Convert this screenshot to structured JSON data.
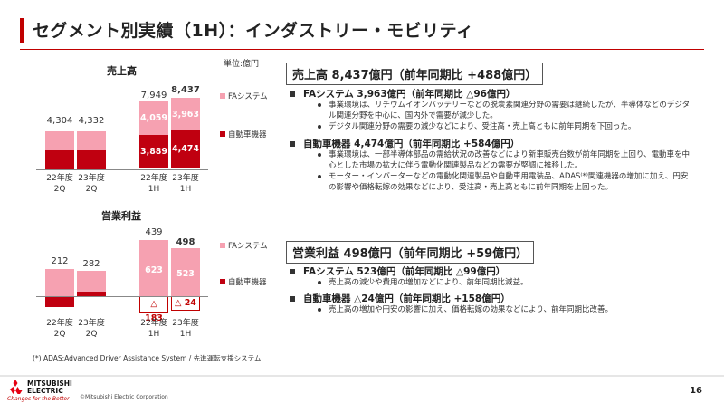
{
  "title": "セグメント別実績（1H）：インダストリー・モビリティ",
  "unit": "単位:億円",
  "colors": {
    "fa": "#f6a1b1",
    "auto": "#c00010",
    "accent": "#c00000"
  },
  "legend": {
    "fa": "FAシステム",
    "auto": "自動車機器"
  },
  "sales_chart": {
    "label": "売上高",
    "categories": [
      "22年度\n2Q",
      "23年度\n2Q",
      "22年度\n1H",
      "23年度\n1H"
    ],
    "totals": [
      "4,304",
      "4,332",
      "7,949",
      "8,437"
    ],
    "fa": [
      "",
      "",
      "4,059",
      "3,963"
    ],
    "auto": [
      "",
      "",
      "3,889",
      "4,474"
    ]
  },
  "profit_chart": {
    "label": "営業利益",
    "categories": [
      "22年度\n2Q",
      "23年度\n2Q",
      "22年度\n1H",
      "23年度\n1H"
    ],
    "totals": [
      "212",
      "282",
      "439",
      "498"
    ],
    "fa": [
      "",
      "",
      "623",
      "523"
    ],
    "auto": [
      "",
      "",
      "△ 183",
      "△ 24"
    ]
  },
  "chart_data": [
    {
      "type": "bar",
      "title": "売上高",
      "categories": [
        "22年度 2Q",
        "23年度 2Q",
        "22年度 1H",
        "23年度 1H"
      ],
      "series": [
        {
          "name": "FAシステム",
          "values": [
            2054,
            2035,
            4059,
            3963
          ]
        },
        {
          "name": "自動車機器",
          "values": [
            2250,
            2297,
            3889,
            4474
          ]
        }
      ],
      "totals": [
        4304,
        4332,
        7949,
        8437
      ]
    },
    {
      "type": "bar",
      "title": "営業利益",
      "categories": [
        "22年度 2Q",
        "23年度 2Q",
        "22年度 1H",
        "23年度 1H"
      ],
      "series": [
        {
          "name": "FAシステム",
          "values": [
            300,
            250,
            623,
            523
          ]
        },
        {
          "name": "自動車機器",
          "values": [
            -88,
            32,
            -183,
            -24
          ]
        }
      ],
      "totals": [
        212,
        282,
        439,
        498
      ]
    }
  ],
  "sales_section": {
    "header": "売上高 8,437億円（前年同期比 +488億円）",
    "fa_heading": "FAシステム 3,963億円（前年同期比 △96億円）",
    "fa_bullets": [
      "事業環境は、リチウムイオンバッテリーなどの脱炭素関連分野の需要は継続したが、半導体などのデジタル関連分野を中心に、国内外で需要が減少した。",
      "デジタル関連分野の需要の減少などにより、受注高・売上高ともに前年同期を下回った。"
    ],
    "auto_heading": "自動車機器 4,474億円（前年同期比 +584億円）",
    "auto_bullets": [
      "事業環境は、一部半導体部品の需給状況の改善などにより新車販売台数が前年同期を上回り、電動車を中心とした市場の拡大に伴う電動化関連製品などの需要が堅調に推移した。",
      "モーター・インバーターなどの電動化関連製品や自動車用電装品、ADAS⁽*⁾関連機器の増加に加え、円安の影響や価格転嫁の効果などにより、受注高・売上高ともに前年同期を上回った。"
    ]
  },
  "profit_section": {
    "header": "営業利益 498億円（前年同期比 +59億円）",
    "fa_heading": "FAシステム 523億円（前年同期比 △99億円）",
    "fa_bullets": [
      "売上高の減少や費用の増加などにより、前年同期比減益。"
    ],
    "auto_heading": "自動車機器 △24億円（前年同期比 +158億円）",
    "auto_bullets": [
      "売上高の増加や円安の影響に加え、価格転嫁の効果などにより、前年同期比改善。"
    ]
  },
  "footnote": "(*) ADAS:Advanced Driver Assistance System / 先進運転支援システム",
  "footer": {
    "logo_line1": "MITSUBISHI",
    "logo_line2": "ELECTRIC",
    "tagline": "Changes for the Better",
    "copyright": "©Mitsubishi Electric Corporation",
    "page": "16"
  }
}
